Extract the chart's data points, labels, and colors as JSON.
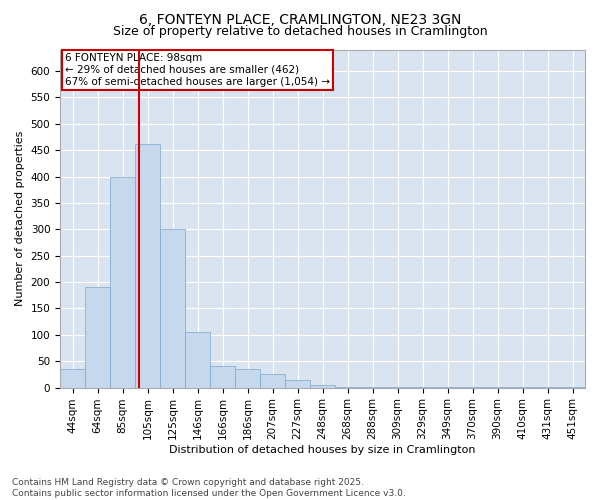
{
  "title_line1": "6, FONTEYN PLACE, CRAMLINGTON, NE23 3GN",
  "title_line2": "Size of property relative to detached houses in Cramlington",
  "xlabel": "Distribution of detached houses by size in Cramlington",
  "ylabel": "Number of detached properties",
  "bins": [
    "44sqm",
    "64sqm",
    "85sqm",
    "105sqm",
    "125sqm",
    "146sqm",
    "166sqm",
    "186sqm",
    "207sqm",
    "227sqm",
    "248sqm",
    "268sqm",
    "288sqm",
    "309sqm",
    "329sqm",
    "349sqm",
    "370sqm",
    "390sqm",
    "410sqm",
    "431sqm",
    "451sqm"
  ],
  "values": [
    35,
    190,
    400,
    462,
    300,
    105,
    40,
    35,
    25,
    15,
    5,
    2,
    2,
    2,
    1,
    1,
    1,
    1,
    1,
    1,
    1
  ],
  "bar_color": "#c5d8ee",
  "bar_edge_color": "#7ba7cc",
  "vline_color": "#cc0000",
  "vline_x": 2.65,
  "annotation_text": "6 FONTEYN PLACE: 98sqm\n← 29% of detached houses are smaller (462)\n67% of semi-detached houses are larger (1,054) →",
  "annotation_box_color": "#ffffff",
  "annotation_box_edge": "#cc0000",
  "ylim": [
    0,
    640
  ],
  "yticks": [
    0,
    50,
    100,
    150,
    200,
    250,
    300,
    350,
    400,
    450,
    500,
    550,
    600
  ],
  "background_color": "#dae4f0",
  "grid_color": "#ffffff",
  "footer_line1": "Contains HM Land Registry data © Crown copyright and database right 2025.",
  "footer_line2": "Contains public sector information licensed under the Open Government Licence v3.0.",
  "title_fontsize": 10,
  "subtitle_fontsize": 9,
  "axis_label_fontsize": 8,
  "tick_fontsize": 7.5,
  "annotation_fontsize": 7.5,
  "footer_fontsize": 6.5
}
